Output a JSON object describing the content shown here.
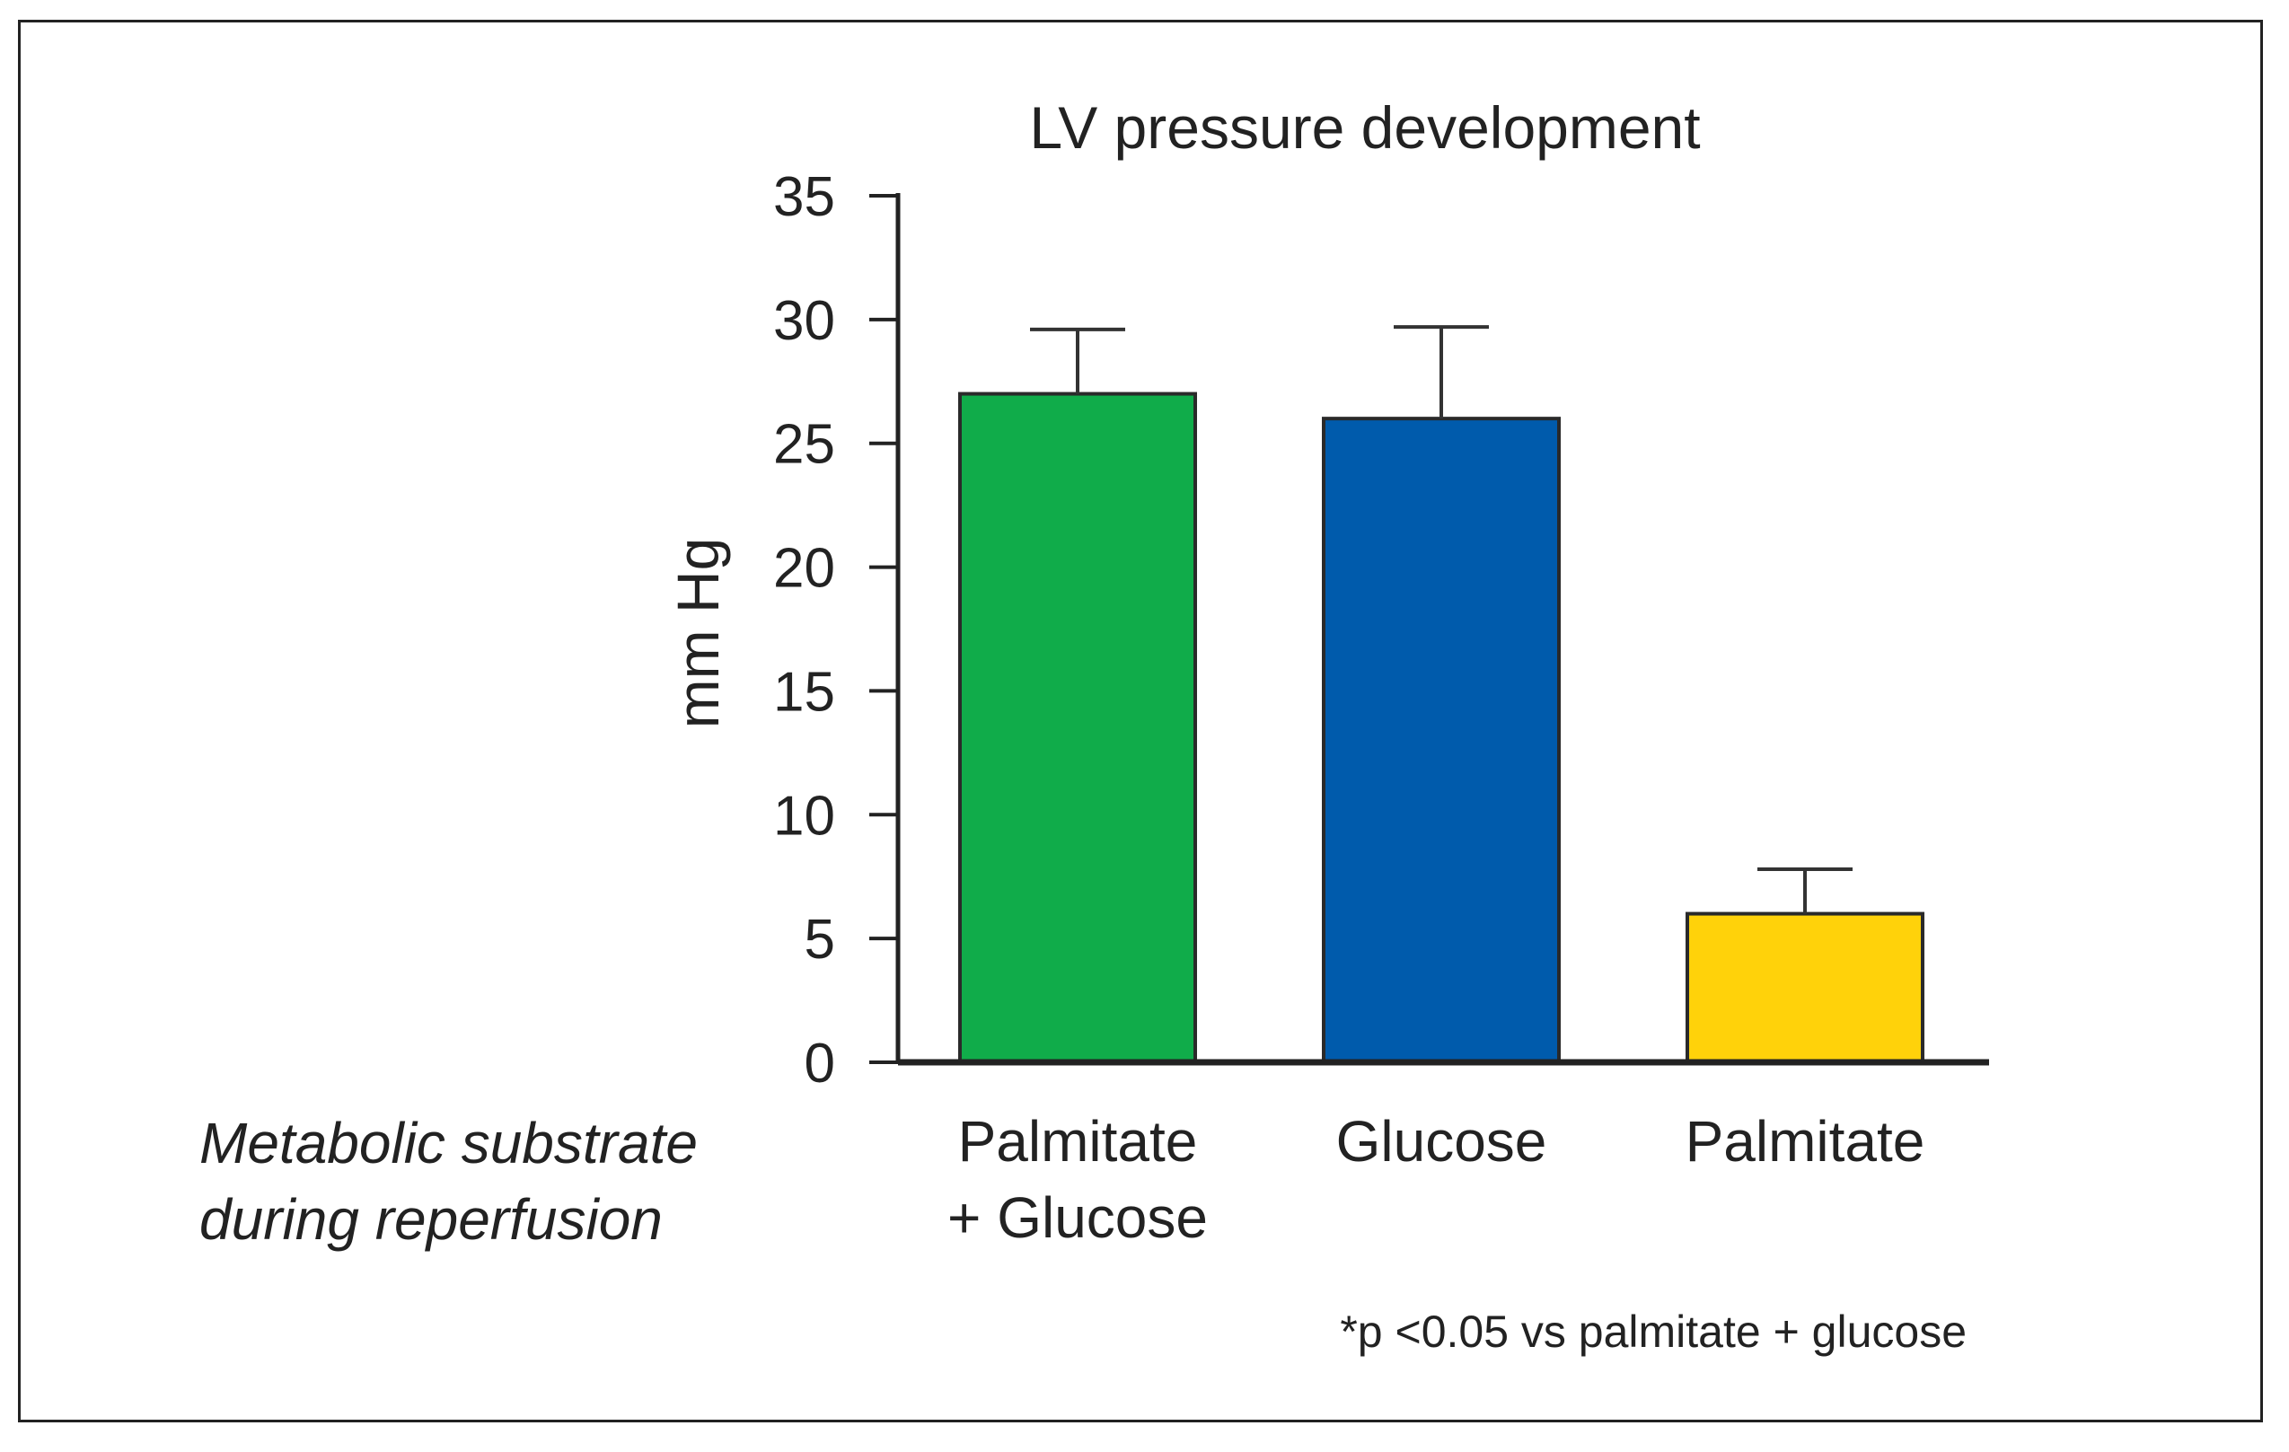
{
  "chart_data": {
    "type": "bar",
    "title": "LV pressure development",
    "ylabel": "mm Hg",
    "xlabel_lines": [
      "Metabolic substrate",
      "during reperfusion"
    ],
    "footnote": "*p <0.05 vs palmitate + glucose",
    "ylim": [
      0,
      35
    ],
    "yticks": [
      "0",
      "5",
      "10",
      "15",
      "20",
      "25",
      "30",
      "35"
    ],
    "categories": [
      [
        "Palmitate",
        "+ Glucose"
      ],
      [
        "Glucose"
      ],
      [
        "Palmitate"
      ]
    ],
    "values": [
      27,
      26,
      6
    ],
    "errors": [
      2.6,
      3.7,
      1.8
    ],
    "colors": [
      "#10ac4a",
      "#005bac",
      "#ffd20a"
    ],
    "grid": false,
    "legend": "none"
  }
}
